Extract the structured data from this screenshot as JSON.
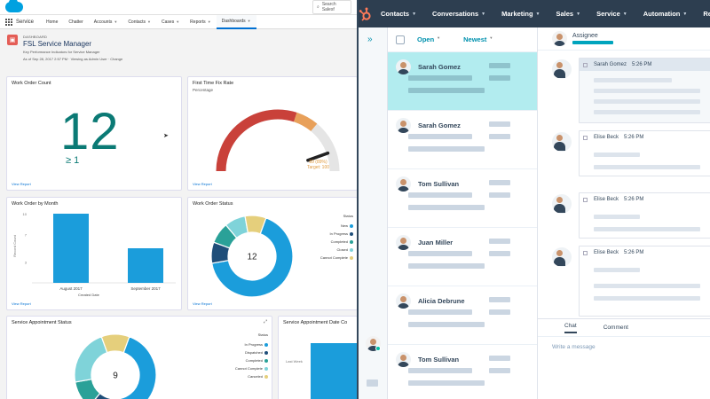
{
  "salesforce": {
    "search_placeholder": "Search Salesf",
    "app_name": "Service",
    "nav": [
      "Home",
      "Chatter",
      "Accounts",
      "Contacts",
      "Cases",
      "Reports",
      "Dashboards"
    ],
    "nav_dropdowns": [
      false,
      false,
      true,
      true,
      true,
      true,
      true
    ],
    "active_tab": "Dashboards",
    "dashboard": {
      "eyebrow": "DASHBOARD",
      "title": "FSL Service Manager",
      "description": "Key Performance Indicators for Service Manager",
      "as_of": "As of Sep 28, 2017 2:57 PM · Viewing as Admin User · Change"
    },
    "cards": {
      "work_order_count": {
        "title": "Work Order Count",
        "value": "12",
        "sub_value": "≥ 1",
        "link": "View Report"
      },
      "first_time_fix": {
        "title": "First Time Fix Rate",
        "subtitle": "Percentage",
        "link": "View Report",
        "value_label": "89 (89%)",
        "target_label": "Target: 100",
        "chart_data": {
          "type": "gauge",
          "value": 89,
          "max": 100
        }
      },
      "work_order_by_month": {
        "title": "Work Order by Month",
        "link": "View Report",
        "y_ticks": [
          "10",
          "7",
          "3"
        ],
        "ylabel": "Record Count",
        "xlabel": "Created Date",
        "chart_data": {
          "type": "bar",
          "categories": [
            "August 2017",
            "September 2017"
          ],
          "values": [
            10,
            5
          ],
          "ylim": [
            0,
            10
          ]
        }
      },
      "work_order_status": {
        "title": "Work Order Status",
        "link": "View Report",
        "center": "12",
        "legend_title": "Status",
        "chart_data": {
          "type": "donut",
          "labels": [
            "New",
            "In Progress",
            "Completed",
            "Closed",
            "Cannot Complete"
          ],
          "values": [
            8,
            1,
            1,
            1,
            1
          ],
          "colors": [
            "#1b9ddb",
            "#1f4e79",
            "#2aa198",
            "#7fd3d9",
            "#e5cf7c"
          ]
        }
      },
      "service_appointment_status": {
        "title": "Service Appointment Status",
        "center": "9",
        "legend_title": "Status",
        "chart_data": {
          "type": "donut",
          "labels": [
            "In Progress",
            "Dispatched",
            "Completed",
            "Cannot Complete",
            "Canceled"
          ],
          "values": [
            4,
            1,
            1,
            2,
            1
          ],
          "colors": [
            "#1b9ddb",
            "#1f4e79",
            "#2aa198",
            "#7fd3d9",
            "#e5cf7c"
          ]
        }
      },
      "service_appointment_date": {
        "title": "Service Appointment Date Co",
        "tick": "Last Week"
      }
    }
  },
  "hubspot": {
    "menu": [
      "Contacts",
      "Conversations",
      "Marketing",
      "Sales",
      "Service",
      "Automation",
      "Reports"
    ],
    "filters": {
      "status": "Open",
      "sort": "Newest"
    },
    "conversations": [
      {
        "name": "Sarah Gomez",
        "selected": true,
        "skin": "#c9926b",
        "shirt": "#e9a23b"
      },
      {
        "name": "Sarah Gomez",
        "selected": false,
        "skin": "#c9926b",
        "shirt": "#e9a23b"
      },
      {
        "name": "Tom Sullivan",
        "selected": false,
        "skin": "#b07352",
        "shirt": "#b2342c"
      },
      {
        "name": "Juan Miller",
        "selected": false,
        "skin": "#a8714f",
        "shirt": "#2c7f7c"
      },
      {
        "name": "Alicia Debrune",
        "selected": false,
        "skin": "#d8a47f",
        "shirt": "#2d3e50"
      },
      {
        "name": "Tom Sullivan",
        "selected": false,
        "skin": "#b07352",
        "shirt": "#b2342c"
      }
    ],
    "thread": {
      "assignee_label": "Assignee",
      "messages": [
        {
          "author": "Sarah Gomez",
          "time": "5:26 PM",
          "type": "agent"
        },
        {
          "author": "Elise Beck",
          "time": "5:26 PM",
          "type": "customer"
        },
        {
          "author": "Elise Beck",
          "time": "5:26 PM",
          "type": "customer"
        },
        {
          "author": "Elise Beck",
          "time": "5:26 PM",
          "type": "customer"
        }
      ],
      "compose_tabs": [
        "Chat",
        "Comment"
      ],
      "compose_placeholder": "Write a message"
    }
  }
}
